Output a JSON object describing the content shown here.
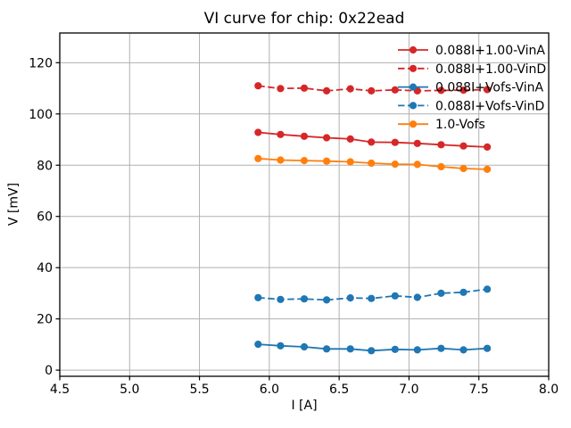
{
  "figure": {
    "title": "VI curve for chip: 0x22ead"
  },
  "chart_data": {
    "type": "line",
    "title": "VI curve for chip: 0x22ead",
    "xlabel": "I [A]",
    "ylabel": "V [mV]",
    "xlim": [
      4.5,
      8.0
    ],
    "ylim": [
      -2.4,
      131.6
    ],
    "xticks": [
      4.5,
      5.0,
      5.5,
      6.0,
      6.5,
      7.0,
      7.5,
      8.0
    ],
    "yticks": [
      0,
      20,
      40,
      60,
      80,
      100,
      120
    ],
    "grid": true,
    "grid_color": "#b0b0b0",
    "spine_color": "#000000",
    "background": "#ffffff",
    "legend_position": "upper right",
    "legend_frame": false,
    "x": [
      5.92,
      6.08,
      6.25,
      6.41,
      6.58,
      6.73,
      6.9,
      7.06,
      7.23,
      7.39,
      7.56
    ],
    "series": [
      {
        "name": "0.088I+1.00-VinA",
        "color": "#d62728",
        "linestyle": "solid",
        "marker": "circle",
        "values": [
          92.8,
          92.0,
          91.3,
          90.7,
          90.2,
          89.0,
          88.9,
          88.5,
          88.0,
          87.5,
          87.1
        ]
      },
      {
        "name": "0.088I+1.00-VinD",
        "color": "#d62728",
        "linestyle": "dashed",
        "marker": "circle",
        "values": [
          111.0,
          109.9,
          110.1,
          109.0,
          109.8,
          109.0,
          109.4,
          109.0,
          109.2,
          109.3,
          109.5
        ]
      },
      {
        "name": "0.088I+Vofs-VinA",
        "color": "#1f77b4",
        "linestyle": "solid",
        "marker": "circle",
        "values": [
          10.1,
          9.5,
          9.1,
          8.3,
          8.3,
          7.6,
          8.1,
          7.9,
          8.5,
          7.9,
          8.5
        ]
      },
      {
        "name": "0.088I+Vofs-VinD",
        "color": "#1f77b4",
        "linestyle": "dashed",
        "marker": "circle",
        "values": [
          28.3,
          27.6,
          27.8,
          27.4,
          28.2,
          28.0,
          29.0,
          28.4,
          30.0,
          30.4,
          31.6
        ]
      },
      {
        "name": "1.0-Vofs",
        "color": "#ff7f0e",
        "linestyle": "solid",
        "marker": "circle",
        "values": [
          82.6,
          82.0,
          81.8,
          81.6,
          81.3,
          80.8,
          80.4,
          80.3,
          79.4,
          78.7,
          78.4
        ]
      }
    ]
  }
}
